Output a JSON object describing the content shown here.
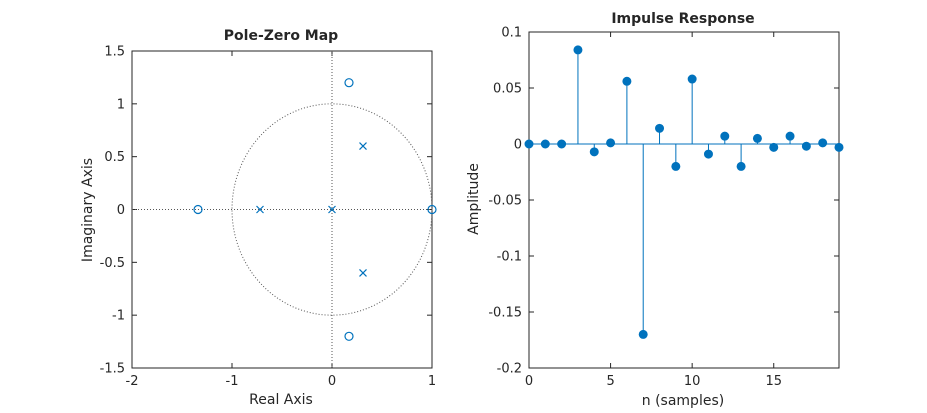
{
  "colors": {
    "series": "#0072BD",
    "axis": "#262626",
    "guide": "#555555",
    "background": "#ffffff"
  },
  "chart_data": [
    {
      "type": "scatter",
      "title": "Pole-Zero Map",
      "xlabel": "Real Axis",
      "ylabel": "Imaginary Axis",
      "xlim": [
        -2,
        1
      ],
      "ylim": [
        -1.5,
        1.5
      ],
      "xticks": [
        -2,
        -1,
        0,
        1
      ],
      "yticks": [
        -1.5,
        -1,
        -0.5,
        0,
        0.5,
        1,
        1.5
      ],
      "xtick_labels": [
        "-2",
        "-1",
        "0",
        "1"
      ],
      "ytick_labels": [
        "-1.5",
        "-1",
        "-0.5",
        "0",
        "0.5",
        "1",
        "1.5"
      ],
      "unit_circle": true,
      "zeros": [
        {
          "x": -1.34,
          "y": 0
        },
        {
          "x": 0.17,
          "y": 1.2
        },
        {
          "x": 0.17,
          "y": -1.2
        },
        {
          "x": 1.0,
          "y": 0
        }
      ],
      "poles": [
        {
          "x": -0.72,
          "y": 0
        },
        {
          "x": 0.0,
          "y": 0
        },
        {
          "x": 0.31,
          "y": 0.6
        },
        {
          "x": 0.31,
          "y": -0.6
        }
      ]
    },
    {
      "type": "stem",
      "title": "Impulse Response",
      "xlabel": "n (samples)",
      "ylabel": "Amplitude",
      "xlim": [
        0,
        19
      ],
      "ylim": [
        -0.2,
        0.1
      ],
      "xticks": [
        0,
        5,
        10,
        15
      ],
      "yticks": [
        -0.2,
        -0.15,
        -0.1,
        -0.05,
        0,
        0.05,
        0.1
      ],
      "xtick_labels": [
        "0",
        "5",
        "10",
        "15"
      ],
      "ytick_labels": [
        "-0.2",
        "-0.15",
        "-0.1",
        "-0.05",
        "0",
        "0.05",
        "0.1"
      ],
      "x": [
        0,
        1,
        2,
        3,
        4,
        5,
        6,
        7,
        8,
        9,
        10,
        11,
        12,
        13,
        14,
        15,
        16,
        17,
        18,
        19
      ],
      "values": [
        0,
        0,
        0,
        0.084,
        -0.007,
        0.001,
        0.056,
        -0.17,
        0.014,
        -0.02,
        0.058,
        -0.009,
        0.007,
        -0.02,
        0.005,
        -0.003,
        0.007,
        -0.002,
        0.001,
        -0.003
      ]
    }
  ]
}
